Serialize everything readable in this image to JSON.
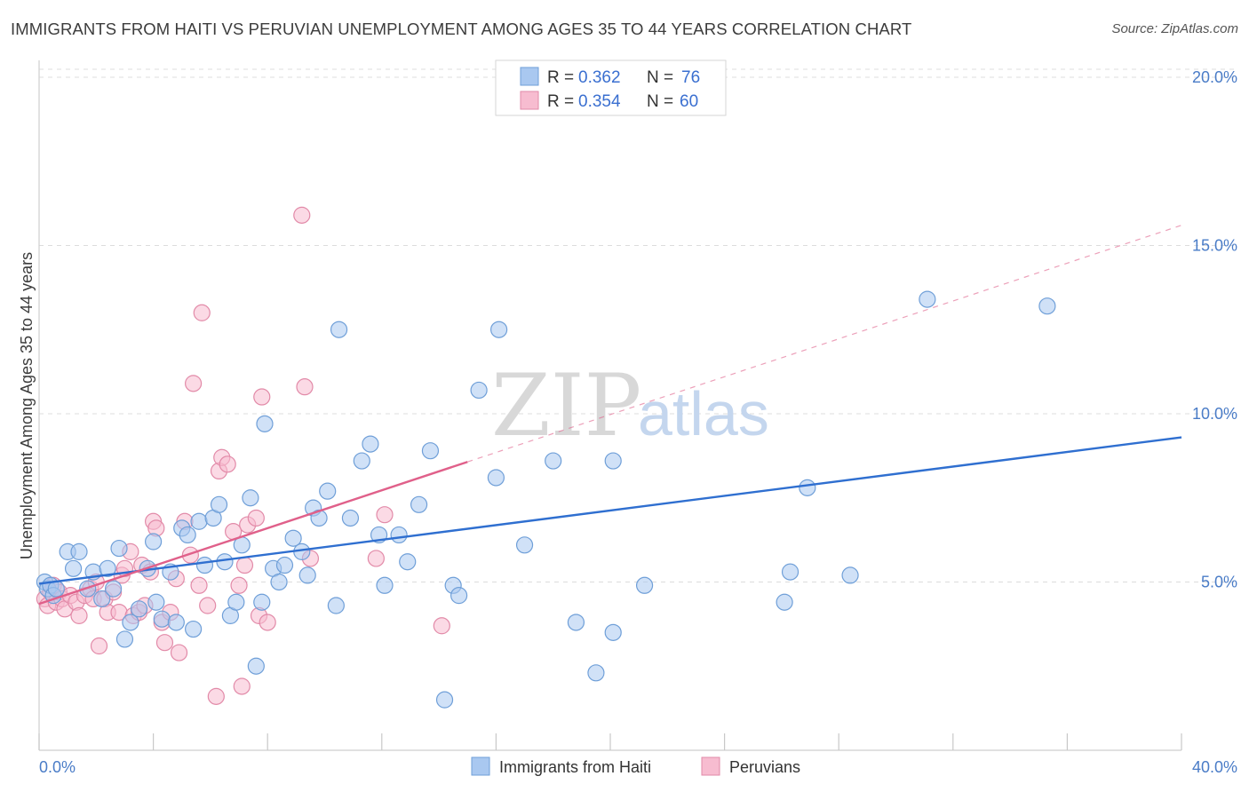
{
  "title": "IMMIGRANTS FROM HAITI VS PERUVIAN UNEMPLOYMENT AMONG AGES 35 TO 44 YEARS CORRELATION CHART",
  "source": "Source: ZipAtlas.com",
  "watermark": {
    "zip": "ZIP",
    "atlas": "atlas"
  },
  "legend": {
    "r_label": "R =",
    "n_label": "N =",
    "rows": [
      {
        "r": "0.362",
        "n": "76",
        "color": "#a9c8f0"
      },
      {
        "r": "0.354",
        "n": "60",
        "color": "#f7bcd0"
      }
    ]
  },
  "chart_data": {
    "type": "scatter",
    "title": "IMMIGRANTS FROM HAITI VS PERUVIAN UNEMPLOYMENT AMONG AGES 35 TO 44 YEARS CORRELATION CHART",
    "ylabel": "Unemployment Among Ages 35 to 44 years",
    "xlabel": "",
    "xlim": [
      0,
      40
    ],
    "ylim": [
      0,
      20.5
    ],
    "x_ticks": [
      0,
      4,
      8,
      12,
      16,
      20,
      24,
      28,
      32,
      36,
      40
    ],
    "x_tick_labels": {
      "0": "0.0%",
      "40": "40.0%"
    },
    "y_ticks": [
      5,
      10,
      15,
      20
    ],
    "y_tick_labels": [
      "5.0%",
      "10.0%",
      "15.0%",
      "20.0%"
    ],
    "grid": true,
    "legend_position": "top-center",
    "series": [
      {
        "name": "Immigrants from Haiti",
        "color": "#a9c8f0",
        "stroke": "#6f9fd8",
        "line_color": "#2f6fd0",
        "r": 0.362,
        "n": 76,
        "trend": {
          "x0": 0,
          "y0": 4.95,
          "x1": 40,
          "y1": 9.3,
          "dashed_from": null
        },
        "points": [
          [
            0.2,
            5.0
          ],
          [
            0.3,
            4.8
          ],
          [
            0.4,
            4.9
          ],
          [
            0.5,
            4.6
          ],
          [
            0.6,
            4.8
          ],
          [
            1.0,
            5.9
          ],
          [
            1.2,
            5.4
          ],
          [
            1.4,
            5.9
          ],
          [
            1.7,
            4.8
          ],
          [
            1.9,
            5.3
          ],
          [
            2.2,
            4.5
          ],
          [
            2.4,
            5.4
          ],
          [
            2.6,
            4.8
          ],
          [
            2.8,
            6.0
          ],
          [
            3.0,
            3.3
          ],
          [
            3.2,
            3.8
          ],
          [
            3.5,
            4.2
          ],
          [
            3.8,
            5.4
          ],
          [
            4.0,
            6.2
          ],
          [
            4.1,
            4.4
          ],
          [
            4.3,
            3.9
          ],
          [
            4.6,
            5.3
          ],
          [
            4.8,
            3.8
          ],
          [
            5.0,
            6.6
          ],
          [
            5.2,
            6.4
          ],
          [
            5.4,
            3.6
          ],
          [
            5.6,
            6.8
          ],
          [
            5.8,
            5.5
          ],
          [
            6.1,
            6.9
          ],
          [
            6.3,
            7.3
          ],
          [
            6.5,
            5.6
          ],
          [
            6.7,
            4.0
          ],
          [
            6.9,
            4.4
          ],
          [
            7.1,
            6.1
          ],
          [
            7.4,
            7.5
          ],
          [
            7.6,
            2.5
          ],
          [
            7.8,
            4.4
          ],
          [
            7.9,
            9.7
          ],
          [
            8.2,
            5.4
          ],
          [
            8.4,
            5.0
          ],
          [
            8.6,
            5.5
          ],
          [
            8.9,
            6.3
          ],
          [
            9.2,
            5.9
          ],
          [
            9.4,
            5.2
          ],
          [
            9.6,
            7.2
          ],
          [
            9.8,
            6.9
          ],
          [
            10.1,
            7.7
          ],
          [
            10.4,
            4.3
          ],
          [
            10.5,
            12.5
          ],
          [
            10.9,
            6.9
          ],
          [
            11.3,
            8.6
          ],
          [
            11.6,
            9.1
          ],
          [
            11.9,
            6.4
          ],
          [
            12.1,
            4.9
          ],
          [
            12.6,
            6.4
          ],
          [
            12.9,
            5.6
          ],
          [
            13.3,
            7.3
          ],
          [
            13.7,
            8.9
          ],
          [
            14.2,
            1.5
          ],
          [
            14.5,
            4.9
          ],
          [
            14.7,
            4.6
          ],
          [
            15.4,
            10.7
          ],
          [
            16.0,
            8.1
          ],
          [
            16.1,
            12.5
          ],
          [
            17.0,
            6.1
          ],
          [
            18.0,
            8.6
          ],
          [
            18.8,
            3.8
          ],
          [
            19.5,
            2.3
          ],
          [
            20.1,
            3.5
          ],
          [
            20.1,
            8.6
          ],
          [
            21.2,
            4.9
          ],
          [
            26.1,
            4.4
          ],
          [
            26.3,
            5.3
          ],
          [
            26.9,
            7.8
          ],
          [
            28.4,
            5.2
          ],
          [
            31.1,
            13.4
          ],
          [
            35.3,
            13.2
          ]
        ]
      },
      {
        "name": "Peruvians",
        "color": "#f7bcd0",
        "stroke": "#e28aa8",
        "line_color": "#e0608a",
        "r": 0.354,
        "n": 60,
        "trend": {
          "x0": 0,
          "y0": 4.35,
          "x1": 40,
          "y1": 15.6,
          "solid_until": 15
        },
        "points": [
          [
            0.2,
            4.5
          ],
          [
            0.3,
            4.3
          ],
          [
            0.4,
            4.7
          ],
          [
            0.5,
            4.9
          ],
          [
            0.6,
            4.4
          ],
          [
            0.7,
            4.7
          ],
          [
            0.8,
            4.5
          ],
          [
            0.9,
            4.2
          ],
          [
            1.1,
            4.6
          ],
          [
            1.3,
            4.4
          ],
          [
            1.4,
            4.0
          ],
          [
            1.6,
            4.6
          ],
          [
            1.8,
            4.8
          ],
          [
            1.9,
            4.5
          ],
          [
            2.0,
            5.0
          ],
          [
            2.1,
            3.1
          ],
          [
            2.3,
            4.5
          ],
          [
            2.4,
            4.1
          ],
          [
            2.6,
            4.7
          ],
          [
            2.8,
            4.1
          ],
          [
            2.9,
            5.2
          ],
          [
            3.0,
            5.4
          ],
          [
            3.2,
            5.9
          ],
          [
            3.3,
            4.0
          ],
          [
            3.5,
            4.1
          ],
          [
            3.6,
            5.5
          ],
          [
            3.7,
            4.3
          ],
          [
            3.9,
            5.3
          ],
          [
            4.0,
            6.8
          ],
          [
            4.1,
            6.6
          ],
          [
            4.3,
            3.8
          ],
          [
            4.4,
            3.2
          ],
          [
            4.6,
            4.1
          ],
          [
            4.8,
            5.1
          ],
          [
            4.9,
            2.9
          ],
          [
            5.1,
            6.8
          ],
          [
            5.3,
            5.8
          ],
          [
            5.4,
            10.9
          ],
          [
            5.6,
            4.9
          ],
          [
            5.7,
            13.0
          ],
          [
            5.9,
            4.3
          ],
          [
            6.2,
            1.6
          ],
          [
            6.3,
            8.3
          ],
          [
            6.4,
            8.7
          ],
          [
            6.6,
            8.5
          ],
          [
            6.8,
            6.5
          ],
          [
            7.0,
            4.9
          ],
          [
            7.1,
            1.9
          ],
          [
            7.2,
            5.5
          ],
          [
            7.3,
            6.7
          ],
          [
            7.6,
            6.9
          ],
          [
            7.7,
            4.0
          ],
          [
            7.8,
            10.5
          ],
          [
            8.0,
            3.8
          ],
          [
            9.2,
            15.9
          ],
          [
            9.3,
            10.8
          ],
          [
            9.5,
            5.7
          ],
          [
            11.8,
            5.7
          ],
          [
            12.1,
            7.0
          ],
          [
            14.1,
            3.7
          ]
        ]
      }
    ]
  }
}
